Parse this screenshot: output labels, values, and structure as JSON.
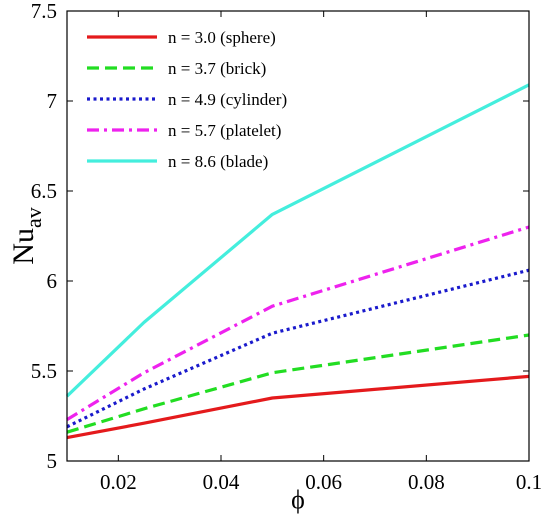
{
  "chart_data": {
    "type": "line",
    "xlabel": "ϕ",
    "ylabel": "Nu",
    "ylabel_subscript": "av",
    "xlim": [
      0.01,
      0.1
    ],
    "ylim": [
      5,
      7.5
    ],
    "xticks": [
      0.02,
      0.04,
      0.06,
      0.08,
      0.1
    ],
    "xtick_labels": [
      "0.02",
      "0.04",
      "0.06",
      "0.08",
      "0.1"
    ],
    "yticks": [
      5,
      5.5,
      6,
      6.5,
      7,
      7.5
    ],
    "ytick_labels": [
      "5",
      "5.5",
      "6",
      "6.5",
      "7",
      "7.5"
    ],
    "grid": false,
    "legend_position": "top-left",
    "x": [
      0.01,
      0.025,
      0.05,
      0.1
    ],
    "series": [
      {
        "name": "n = 3.0 (sphere)",
        "color": "#e41a1c",
        "dash": "solid",
        "values": [
          5.13,
          5.21,
          5.35,
          5.47
        ]
      },
      {
        "name": "n = 3.7 (brick)",
        "color": "#22dd22",
        "dash": "dashed",
        "values": [
          5.16,
          5.29,
          5.49,
          5.7
        ]
      },
      {
        "name": "n = 4.9 (cylinder)",
        "color": "#1a1acc",
        "dash": "dotted",
        "values": [
          5.19,
          5.4,
          5.71,
          6.06
        ]
      },
      {
        "name": "n = 5.7 (platelet)",
        "color": "#ee22ee",
        "dash": "dashdot",
        "values": [
          5.23,
          5.49,
          5.86,
          6.3
        ]
      },
      {
        "name": "n = 8.6 (blade)",
        "color": "#44eedd",
        "dash": "solid",
        "values": [
          5.36,
          5.77,
          6.37,
          7.09
        ]
      }
    ]
  }
}
